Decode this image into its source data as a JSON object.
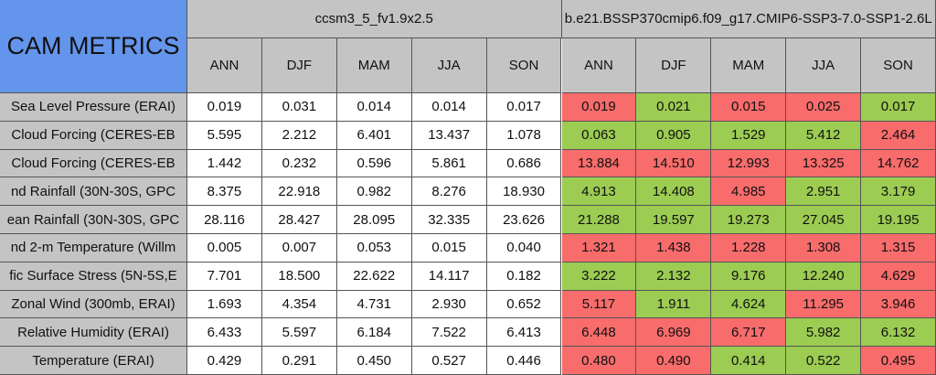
{
  "header": {
    "title": "CAM METRICS",
    "cases": [
      {
        "name": "ccsm3_5_fv1.9x2.5",
        "seasons": [
          "ANN",
          "DJF",
          "MAM",
          "JJA",
          "SON"
        ]
      },
      {
        "name": "b.e21.BSSP370cmip6.f09_g17.CMIP6-SSP3-7.0-SSP1-2.6L",
        "seasons": [
          "ANN",
          "DJF",
          "MAM",
          "JJA",
          "SON"
        ]
      }
    ]
  },
  "table": {
    "rows": [
      {
        "label": "Sea Level Pressure (ERAI)",
        "values": [
          "0.019",
          "0.031",
          "0.014",
          "0.014",
          "0.017",
          "0.019",
          "0.021",
          "0.015",
          "0.025",
          "0.017"
        ],
        "colors": [
          "#f86c6c",
          "#9ccc52",
          "#f86c6c",
          "#f86c6c",
          "#9ccc52"
        ]
      },
      {
        "label": "Cloud Forcing (CERES-EB",
        "values": [
          "5.595",
          "2.212",
          "6.401",
          "13.437",
          "1.078",
          "0.063",
          "0.905",
          "1.529",
          "5.412",
          "2.464"
        ],
        "colors": [
          "#9ccc52",
          "#9ccc52",
          "#9ccc52",
          "#9ccc52",
          "#f86c6c"
        ]
      },
      {
        "label": "Cloud Forcing (CERES-EB",
        "values": [
          "1.442",
          "0.232",
          "0.596",
          "5.861",
          "0.686",
          "13.884",
          "14.510",
          "12.993",
          "13.325",
          "14.762"
        ],
        "colors": [
          "#f86c6c",
          "#f86c6c",
          "#f86c6c",
          "#f86c6c",
          "#f86c6c"
        ]
      },
      {
        "label": "nd Rainfall (30N-30S, GPC",
        "values": [
          "8.375",
          "22.918",
          "0.982",
          "8.276",
          "18.930",
          "4.913",
          "14.408",
          "4.985",
          "2.951",
          "3.179"
        ],
        "colors": [
          "#9ccc52",
          "#9ccc52",
          "#f86c6c",
          "#9ccc52",
          "#9ccc52"
        ]
      },
      {
        "label": "ean Rainfall (30N-30S, GPC",
        "values": [
          "28.116",
          "28.427",
          "28.095",
          "32.335",
          "23.626",
          "21.288",
          "19.597",
          "19.273",
          "27.045",
          "19.195"
        ],
        "colors": [
          "#9ccc52",
          "#9ccc52",
          "#9ccc52",
          "#9ccc52",
          "#9ccc52"
        ]
      },
      {
        "label": "nd 2-m Temperature (Willm",
        "values": [
          "0.005",
          "0.007",
          "0.053",
          "0.015",
          "0.040",
          "1.321",
          "1.438",
          "1.228",
          "1.308",
          "1.315"
        ],
        "colors": [
          "#f86c6c",
          "#f86c6c",
          "#f86c6c",
          "#f86c6c",
          "#f86c6c"
        ]
      },
      {
        "label": "fic Surface Stress (5N-5S,E",
        "values": [
          "7.701",
          "18.500",
          "22.622",
          "14.117",
          "0.182",
          "3.222",
          "2.132",
          "9.176",
          "12.240",
          "4.629"
        ],
        "colors": [
          "#9ccc52",
          "#9ccc52",
          "#9ccc52",
          "#9ccc52",
          "#f86c6c"
        ]
      },
      {
        "label": "Zonal Wind (300mb, ERAI)",
        "values": [
          "1.693",
          "4.354",
          "4.731",
          "2.930",
          "0.652",
          "5.117",
          "1.911",
          "4.624",
          "11.295",
          "3.946"
        ],
        "colors": [
          "#f86c6c",
          "#9ccc52",
          "#9ccc52",
          "#f86c6c",
          "#f86c6c"
        ]
      },
      {
        "label": "Relative Humidity (ERAI)",
        "values": [
          "6.433",
          "5.597",
          "6.184",
          "7.522",
          "6.413",
          "6.448",
          "6.969",
          "6.717",
          "5.982",
          "6.132"
        ],
        "colors": [
          "#f86c6c",
          "#f86c6c",
          "#f86c6c",
          "#9ccc52",
          "#9ccc52"
        ]
      },
      {
        "label": "Temperature (ERAI)",
        "values": [
          "0.429",
          "0.291",
          "0.450",
          "0.527",
          "0.446",
          "0.480",
          "0.490",
          "0.414",
          "0.522",
          "0.495"
        ],
        "colors": [
          "#f86c6c",
          "#f86c6c",
          "#9ccc52",
          "#9ccc52",
          "#f86c6c"
        ]
      }
    ]
  }
}
